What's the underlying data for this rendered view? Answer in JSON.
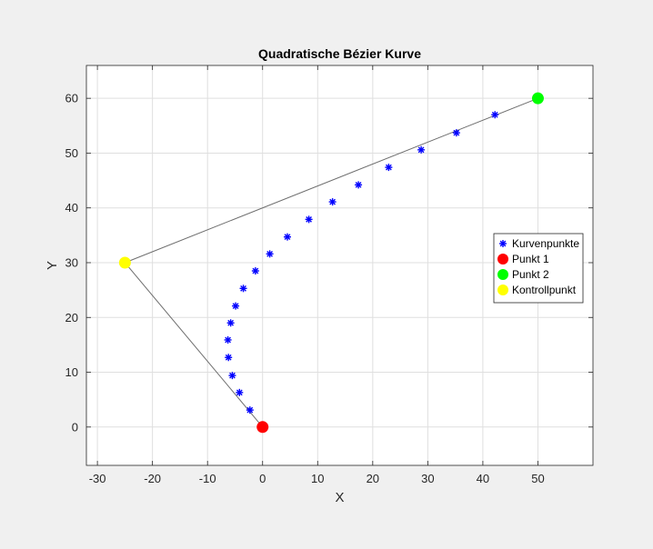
{
  "chart_data": {
    "type": "scatter",
    "title": "Quadratische Bézier Kurve",
    "xlabel": "X",
    "ylabel": "Y",
    "xlim": [
      -32,
      60
    ],
    "ylim": [
      -7,
      66
    ],
    "xticks": [
      -30,
      -20,
      -10,
      0,
      10,
      20,
      30,
      40,
      50
    ],
    "yticks": [
      0,
      10,
      20,
      30,
      40,
      50,
      60
    ],
    "grid": true,
    "legend_position": "right",
    "control_polygon": {
      "points": [
        [
          0,
          0
        ],
        [
          -25,
          30
        ],
        [
          50,
          60
        ]
      ],
      "color": "#6e6e6e"
    },
    "series": [
      {
        "name": "Kurvenpunkte",
        "marker": "asterisk",
        "color": "#0000ff",
        "x": [
          -2.3,
          -4.2,
          -5.5,
          -6.2,
          -6.3,
          -5.8,
          -4.9,
          -3.5,
          -1.3,
          1.3,
          4.5,
          8.4,
          12.7,
          17.4,
          22.9,
          28.8,
          35.2,
          42.2
        ],
        "y": [
          3.1,
          6.3,
          9.4,
          12.7,
          15.9,
          19.0,
          22.1,
          25.3,
          28.5,
          31.6,
          34.7,
          37.9,
          41.1,
          44.2,
          47.4,
          50.6,
          53.7,
          57.0
        ]
      },
      {
        "name": "Punkt 1",
        "marker": "circle",
        "color": "#ff0000",
        "x": [
          0
        ],
        "y": [
          0
        ]
      },
      {
        "name": "Punkt 2",
        "marker": "circle",
        "color": "#00ff00",
        "x": [
          50
        ],
        "y": [
          60
        ]
      },
      {
        "name": "Kontrollpunkt",
        "marker": "circle",
        "color": "#ffff00",
        "x": [
          -25
        ],
        "y": [
          30
        ]
      }
    ]
  }
}
